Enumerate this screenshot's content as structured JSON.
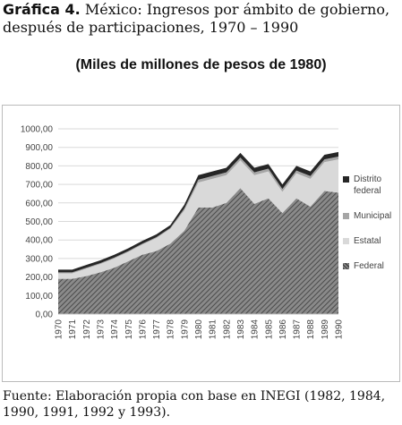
{
  "heading": {
    "label": "Gráfica 4.",
    "text": "México: Ingresos por ámbito de gobierno, después de participaciones, 1970 – 1990"
  },
  "subtitle": "(Miles de millones de pesos de 1980)",
  "chart_data": {
    "type": "stacked-area",
    "categories": [
      "1970",
      "1971",
      "1972",
      "1973",
      "1974",
      "1975",
      "1976",
      "1977",
      "1978",
      "1979",
      "1980",
      "1981",
      "1982",
      "1983",
      "1984",
      "1985",
      "1986",
      "1987",
      "1988",
      "1989",
      "1990"
    ],
    "series": [
      {
        "name": "Federal",
        "color": "#6b6b6b",
        "values": [
          190,
          190,
          205,
          225,
          250,
          285,
          320,
          340,
          380,
          450,
          575,
          575,
          600,
          680,
          595,
          625,
          545,
          625,
          580,
          665,
          655
        ]
      },
      {
        "name": "Estatal",
        "color": "#d9d9d9",
        "values": [
          30,
          30,
          40,
          45,
          50,
          50,
          55,
          70,
          80,
          110,
          135,
          155,
          150,
          150,
          155,
          145,
          115,
          135,
          150,
          155,
          180
        ]
      },
      {
        "name": "Municipal",
        "color": "#a6a6a6",
        "values": [
          5,
          5,
          5,
          5,
          5,
          5,
          5,
          5,
          5,
          10,
          15,
          15,
          15,
          15,
          15,
          15,
          15,
          15,
          15,
          15,
          15
        ]
      },
      {
        "name": "Distrito federal",
        "color": "#262626",
        "values": [
          15,
          15,
          15,
          15,
          15,
          15,
          15,
          15,
          15,
          20,
          25,
          25,
          25,
          25,
          25,
          25,
          25,
          25,
          25,
          25,
          25
        ]
      }
    ],
    "ylim": [
      0,
      1000
    ],
    "yticks": [
      {
        "value": 0,
        "label": "0,00"
      },
      {
        "value": 100,
        "label": "100,00"
      },
      {
        "value": 200,
        "label": "200,00"
      },
      {
        "value": 300,
        "label": "300,00"
      },
      {
        "value": 400,
        "label": "400,00"
      },
      {
        "value": 500,
        "label": "500,00"
      },
      {
        "value": 600,
        "label": "600,00"
      },
      {
        "value": 700,
        "label": "700,00"
      },
      {
        "value": 800,
        "label": "800,00"
      },
      {
        "value": 900,
        "label": "900,00"
      },
      {
        "value": 1000,
        "label": "1000,00"
      }
    ],
    "grid": true
  },
  "source": {
    "label": "Fuente:",
    "text": "Elaboración propia con base en INEGI (1982, 1984, 1990, 1991, 1992 y 1993)."
  }
}
